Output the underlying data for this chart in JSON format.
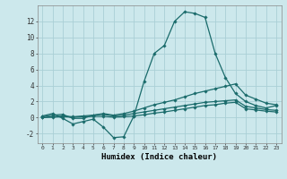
{
  "xlabel": "Humidex (Indice chaleur)",
  "bg_color": "#cce8ec",
  "grid_color": "#aacfd6",
  "line_color": "#1a6b6b",
  "x_values": [
    0,
    1,
    2,
    3,
    4,
    5,
    6,
    7,
    8,
    9,
    10,
    11,
    12,
    13,
    14,
    15,
    16,
    17,
    18,
    19,
    20,
    21,
    22,
    23
  ],
  "line1": [
    0.2,
    0.5,
    -0.1,
    -0.8,
    -0.5,
    -0.2,
    -1.2,
    -2.5,
    -2.4,
    0.2,
    4.5,
    8.0,
    9.0,
    12.0,
    13.2,
    13.0,
    12.5,
    8.0,
    5.0,
    3.0,
    2.0,
    1.5,
    1.2,
    1.5
  ],
  "line2": [
    0.1,
    0.3,
    0.4,
    -0.1,
    -0.1,
    0.3,
    0.5,
    0.3,
    0.5,
    0.8,
    1.2,
    1.6,
    1.9,
    2.2,
    2.6,
    3.0,
    3.3,
    3.6,
    3.9,
    4.2,
    2.8,
    2.3,
    1.8,
    1.6
  ],
  "line3": [
    0.0,
    0.1,
    0.2,
    0.1,
    0.2,
    0.3,
    0.4,
    0.2,
    0.3,
    0.5,
    0.7,
    0.9,
    1.1,
    1.3,
    1.5,
    1.7,
    1.9,
    2.0,
    2.1,
    2.2,
    1.4,
    1.2,
    1.0,
    0.9
  ],
  "line4": [
    0.0,
    0.05,
    0.1,
    0.05,
    0.1,
    0.15,
    0.15,
    0.05,
    0.1,
    0.2,
    0.35,
    0.55,
    0.7,
    0.9,
    1.1,
    1.3,
    1.5,
    1.6,
    1.8,
    1.9,
    1.1,
    0.95,
    0.8,
    0.7
  ],
  "ylim": [
    -3.2,
    14.0
  ],
  "yticks": [
    -2,
    0,
    2,
    4,
    6,
    8,
    10,
    12
  ],
  "xticks": [
    0,
    1,
    2,
    3,
    4,
    5,
    6,
    7,
    8,
    9,
    10,
    11,
    12,
    13,
    14,
    15,
    16,
    17,
    18,
    19,
    20,
    21,
    22,
    23
  ]
}
